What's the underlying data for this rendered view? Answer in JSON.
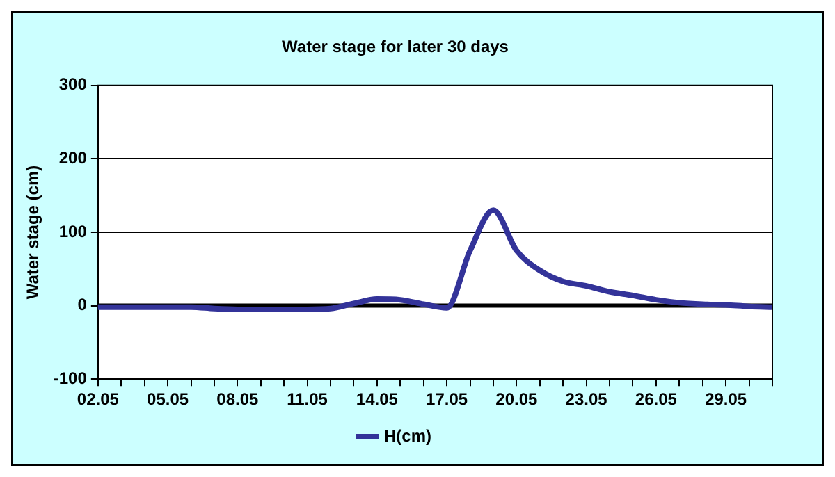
{
  "chart_data": {
    "type": "line",
    "title": "Water stage for later 30 days",
    "ylabel": "Water stage (cm)",
    "categories": [
      "02.05",
      null,
      null,
      "05.05",
      null,
      null,
      "08.05",
      null,
      null,
      "11.05",
      null,
      null,
      "14.05",
      null,
      null,
      "17.05",
      null,
      null,
      "20.05",
      null,
      null,
      "23.05",
      null,
      null,
      "26.05",
      null,
      null,
      "29.05",
      null,
      null
    ],
    "series": [
      {
        "name": "H(cm)",
        "color": "#333399",
        "values": [
          -2,
          -2,
          -2,
          -2,
          -2,
          -4,
          -5,
          -5,
          -5,
          -5,
          -4,
          3,
          9,
          8,
          2,
          -3,
          75,
          130,
          75,
          48,
          33,
          27,
          19,
          14,
          8,
          4,
          2,
          1,
          -1,
          -2
        ]
      }
    ],
    "ylim": [
      -100,
      300
    ],
    "yticks": [
      -100,
      0,
      100,
      200,
      300
    ],
    "grid": "y",
    "legend": "bottom",
    "marker": "none",
    "line_style": "solid"
  }
}
